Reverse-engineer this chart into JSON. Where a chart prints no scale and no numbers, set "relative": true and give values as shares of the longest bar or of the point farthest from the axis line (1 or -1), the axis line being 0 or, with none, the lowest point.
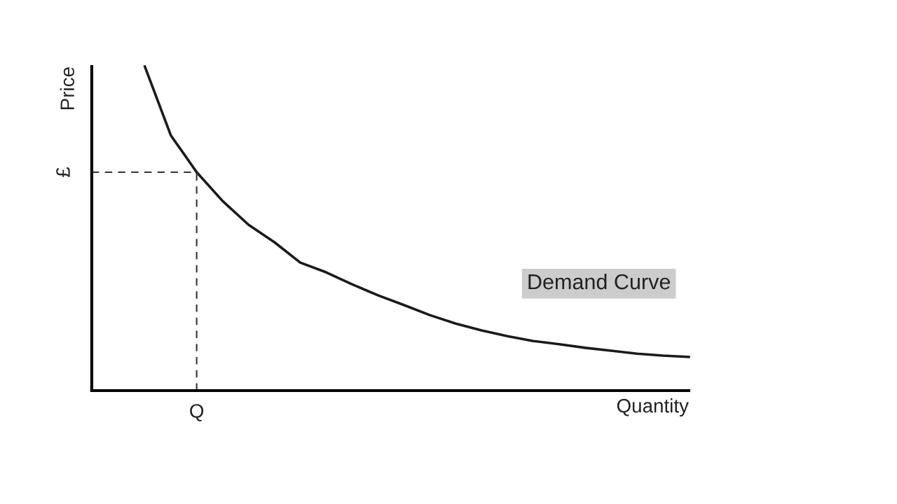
{
  "chart_data": {
    "type": "line",
    "relative": true,
    "xlabel": "Quantity",
    "ylabel": "Price",
    "categories": [
      null,
      null,
      null,
      null,
      null,
      null,
      null,
      null,
      null,
      null,
      null,
      null,
      null,
      null,
      null,
      null,
      null,
      null,
      null,
      null,
      null,
      null
    ],
    "series": [
      {
        "name": "Demand Curve",
        "color": "#1a1a1a",
        "values": [
          1.0,
          0.788,
          0.674,
          0.585,
          0.512,
          0.458,
          0.395,
          0.365,
          0.328,
          0.294,
          0.264,
          0.233,
          0.207,
          0.186,
          0.168,
          0.153,
          0.143,
          0.132,
          0.123,
          0.114,
          0.108,
          0.104
        ]
      }
    ],
    "annotations": [
      "Q"
    ],
    "ref_lines": [
      {
        "axis": "y",
        "value": 0.674,
        "label": "£",
        "color": "#333333",
        "line_style": "dashed"
      }
    ],
    "legend": false,
    "marker": "none",
    "line_style": "solid"
  }
}
